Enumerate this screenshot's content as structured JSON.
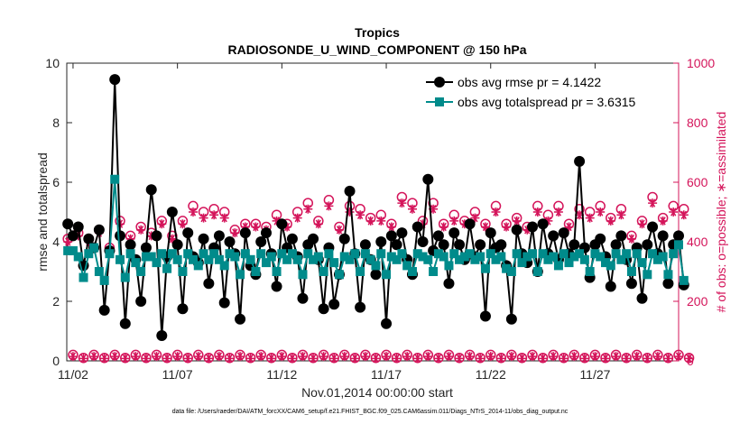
{
  "chart_data": {
    "type": "line",
    "title": "Tropics",
    "subtitle": "RADIOSONDE_U_WIND_COMPONENT @ 150 hPa",
    "xlabel": "Nov.01,2014 00:00:00 start",
    "ylabel": "rmse and totalspread",
    "ylabel_right": "# of obs: o=possible; ∗=assimilated",
    "footnote": "data file: /Users/raeder/DAI/ATM_forcXX/CAM6_setup/f.e21.FHIST_BGC.f09_025.CAM6assim.011/Diags_NTrS_2014-11/obs_diag_output.nc",
    "xlim": [
      1.7,
      31.0
    ],
    "ylim": [
      0,
      10
    ],
    "ylim_right": [
      0,
      1000
    ],
    "x_ticks": [
      {
        "value": 2,
        "label": "11/02"
      },
      {
        "value": 7,
        "label": "11/07"
      },
      {
        "value": 12,
        "label": "11/12"
      },
      {
        "value": 17,
        "label": "11/17"
      },
      {
        "value": 22,
        "label": "11/22"
      },
      {
        "value": 27,
        "label": "11/27"
      }
    ],
    "y_ticks": [
      "0",
      "2",
      "4",
      "6",
      "8",
      "10"
    ],
    "y_ticks_right": [
      "0",
      "200",
      "400",
      "600",
      "800",
      "1000"
    ],
    "legend_position": "top-right",
    "colors": {
      "rmse": "#000000",
      "spread": "#008b8b",
      "obs": "#d4145a"
    },
    "series": [
      {
        "name": "obs avg rmse pr = 4.1422",
        "axis": "left",
        "x_start": 1.75,
        "x_step": 0.25,
        "values": [
          4.6,
          4.2,
          4.5,
          3.2,
          4.1,
          3.8,
          4.4,
          1.7,
          3.7,
          9.45,
          4.2,
          1.25,
          3.9,
          3.4,
          2.0,
          3.8,
          5.75,
          4.2,
          0.85,
          3.5,
          5.0,
          3.9,
          1.75,
          4.3,
          3.5,
          3.3,
          4.1,
          2.6,
          3.8,
          4.2,
          1.95,
          4.0,
          3.6,
          1.4,
          4.3,
          3.2,
          2.9,
          4.0,
          4.3,
          3.6,
          2.5,
          4.6,
          3.8,
          4.1,
          3.5,
          2.1,
          3.9,
          4.1,
          3.4,
          1.75,
          3.8,
          1.9,
          2.9,
          4.1,
          5.7,
          3.6,
          1.8,
          3.9,
          3.4,
          2.9,
          4.0,
          1.25,
          4.2,
          3.9,
          4.3,
          3.4,
          2.9,
          4.5,
          4.0,
          6.1,
          3.7,
          4.2,
          3.9,
          2.6,
          4.3,
          3.9,
          3.4,
          4.6,
          3.5,
          3.9,
          1.5,
          4.3,
          3.8,
          3.9,
          3.2,
          1.4,
          4.4,
          3.6,
          3.3,
          4.5,
          3.0,
          4.6,
          3.6,
          4.2,
          3.4,
          4.3,
          3.6,
          3.9,
          6.7,
          3.8,
          2.8,
          3.9,
          4.1,
          3.5,
          2.5,
          3.9,
          4.2,
          3.4,
          2.6,
          3.8,
          2.1,
          3.9,
          4.5,
          3.6,
          4.2,
          2.6,
          3.9,
          4.2,
          2.55
        ]
      },
      {
        "name": "obs avg totalspread pr = 3.6315",
        "axis": "left",
        "x_start": 1.75,
        "x_step": 0.25,
        "values": [
          3.7,
          3.7,
          3.5,
          2.8,
          3.6,
          3.8,
          3.0,
          2.7,
          3.6,
          6.1,
          3.4,
          2.8,
          3.6,
          3.3,
          3.0,
          3.5,
          3.5,
          3.3,
          3.6,
          3.1,
          3.6,
          3.4,
          3.0,
          3.6,
          3.4,
          3.2,
          3.6,
          3.4,
          3.6,
          3.4,
          3.2,
          3.6,
          3.5,
          2.9,
          3.6,
          3.4,
          3.0,
          3.6,
          3.3,
          3.5,
          3.0,
          3.6,
          3.4,
          3.6,
          3.4,
          2.9,
          3.6,
          3.4,
          3.5,
          3.0,
          3.6,
          3.3,
          2.9,
          3.5,
          3.4,
          3.6,
          3.0,
          3.6,
          3.4,
          3.2,
          3.6,
          2.9,
          3.5,
          3.4,
          3.6,
          3.2,
          3.0,
          3.6,
          3.5,
          3.4,
          3.0,
          3.6,
          3.5,
          3.2,
          3.6,
          3.4,
          3.5,
          3.6,
          3.4,
          3.5,
          3.1,
          3.6,
          3.4,
          3.5,
          3.1,
          3.0,
          3.6,
          3.3,
          3.5,
          3.6,
          3.0,
          3.6,
          3.4,
          3.5,
          3.2,
          3.6,
          3.3,
          3.5,
          3.6,
          3.4,
          3.0,
          3.6,
          3.5,
          3.3,
          3.2,
          3.6,
          3.4,
          3.6,
          3.0,
          3.6,
          3.3,
          2.9,
          3.6,
          3.4,
          3.5,
          2.9,
          3.6,
          3.9,
          2.7
        ]
      },
      {
        "name": "possible obs count",
        "axis": "right",
        "marker": "circle",
        "x_start": 1.75,
        "x_step": 0.25,
        "values": [
          410,
          20,
          430,
          10,
          410,
          20,
          440,
          10,
          380,
          20,
          470,
          10,
          420,
          20,
          450,
          10,
          430,
          20,
          470,
          10,
          420,
          20,
          470,
          10,
          520,
          20,
          500,
          10,
          510,
          20,
          500,
          10,
          440,
          20,
          460,
          10,
          460,
          20,
          450,
          10,
          490,
          20,
          460,
          10,
          500,
          20,
          530,
          10,
          470,
          20,
          540,
          10,
          450,
          20,
          520,
          10,
          510,
          20,
          480,
          10,
          490,
          20,
          460,
          10,
          550,
          20,
          530,
          10,
          470,
          20,
          530,
          10,
          460,
          20,
          490,
          10,
          470,
          20,
          500,
          10,
          460,
          20,
          520,
          10,
          460,
          20,
          480,
          10,
          450,
          20,
          520,
          10,
          490,
          20,
          520,
          10,
          460,
          20,
          510,
          10,
          500,
          20,
          520,
          10,
          480,
          20,
          510,
          10,
          420,
          20,
          470,
          10,
          550,
          20,
          480,
          10,
          520,
          20,
          510,
          10
        ]
      },
      {
        "name": "assimilated obs count",
        "axis": "right",
        "marker": "asterisk",
        "x_start": 1.75,
        "x_step": 0.25,
        "values": [
          400,
          15,
          420,
          8,
          400,
          15,
          430,
          8,
          370,
          15,
          460,
          8,
          410,
          15,
          440,
          8,
          420,
          15,
          460,
          8,
          410,
          15,
          460,
          8,
          500,
          15,
          480,
          8,
          490,
          15,
          480,
          8,
          430,
          15,
          450,
          8,
          450,
          15,
          440,
          8,
          470,
          15,
          450,
          8,
          480,
          15,
          510,
          8,
          460,
          15,
          520,
          8,
          440,
          15,
          500,
          8,
          490,
          15,
          470,
          8,
          470,
          15,
          450,
          8,
          530,
          15,
          510,
          8,
          460,
          15,
          510,
          8,
          450,
          15,
          470,
          8,
          460,
          15,
          480,
          8,
          450,
          15,
          500,
          8,
          450,
          15,
          470,
          8,
          440,
          15,
          500,
          8,
          470,
          15,
          500,
          8,
          450,
          15,
          490,
          8,
          480,
          15,
          500,
          8,
          470,
          15,
          490,
          8,
          410,
          15,
          460,
          8,
          530,
          15,
          470,
          8,
          500,
          15,
          490,
          8
        ]
      }
    ]
  }
}
